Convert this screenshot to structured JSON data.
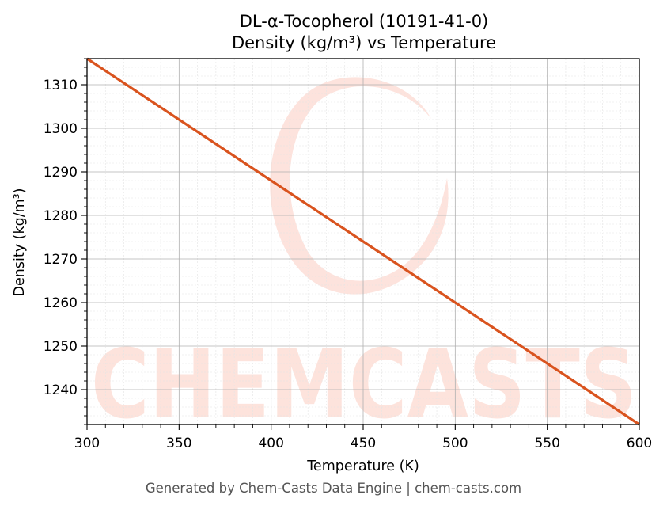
{
  "chart_data": {
    "type": "line",
    "title": "DL-α-Tocopherol (10191-41-0)",
    "subtitle": "Density (kg/m³) vs Temperature",
    "xlabel": "Temperature (K)",
    "ylabel": "Density (kg/m³)",
    "xlim": [
      300,
      600
    ],
    "ylim": [
      1232,
      1316
    ],
    "x_ticks": [
      300,
      350,
      400,
      450,
      500,
      550,
      600
    ],
    "y_ticks": [
      1240,
      1250,
      1260,
      1270,
      1280,
      1290,
      1300,
      1310
    ],
    "grid": true,
    "series": [
      {
        "x": [
          300,
          600
        ],
        "y": [
          1316,
          1232
        ]
      }
    ],
    "colors": {
      "line": "#d9531e",
      "watermark": "#fde0d9",
      "grid_major": "#b0b0b0",
      "grid_minor": "#e4e4e4"
    }
  },
  "watermark": {
    "text": "CHEMCASTS"
  },
  "footer": {
    "text": "Generated by Chem-Casts Data Engine | chem-casts.com"
  }
}
